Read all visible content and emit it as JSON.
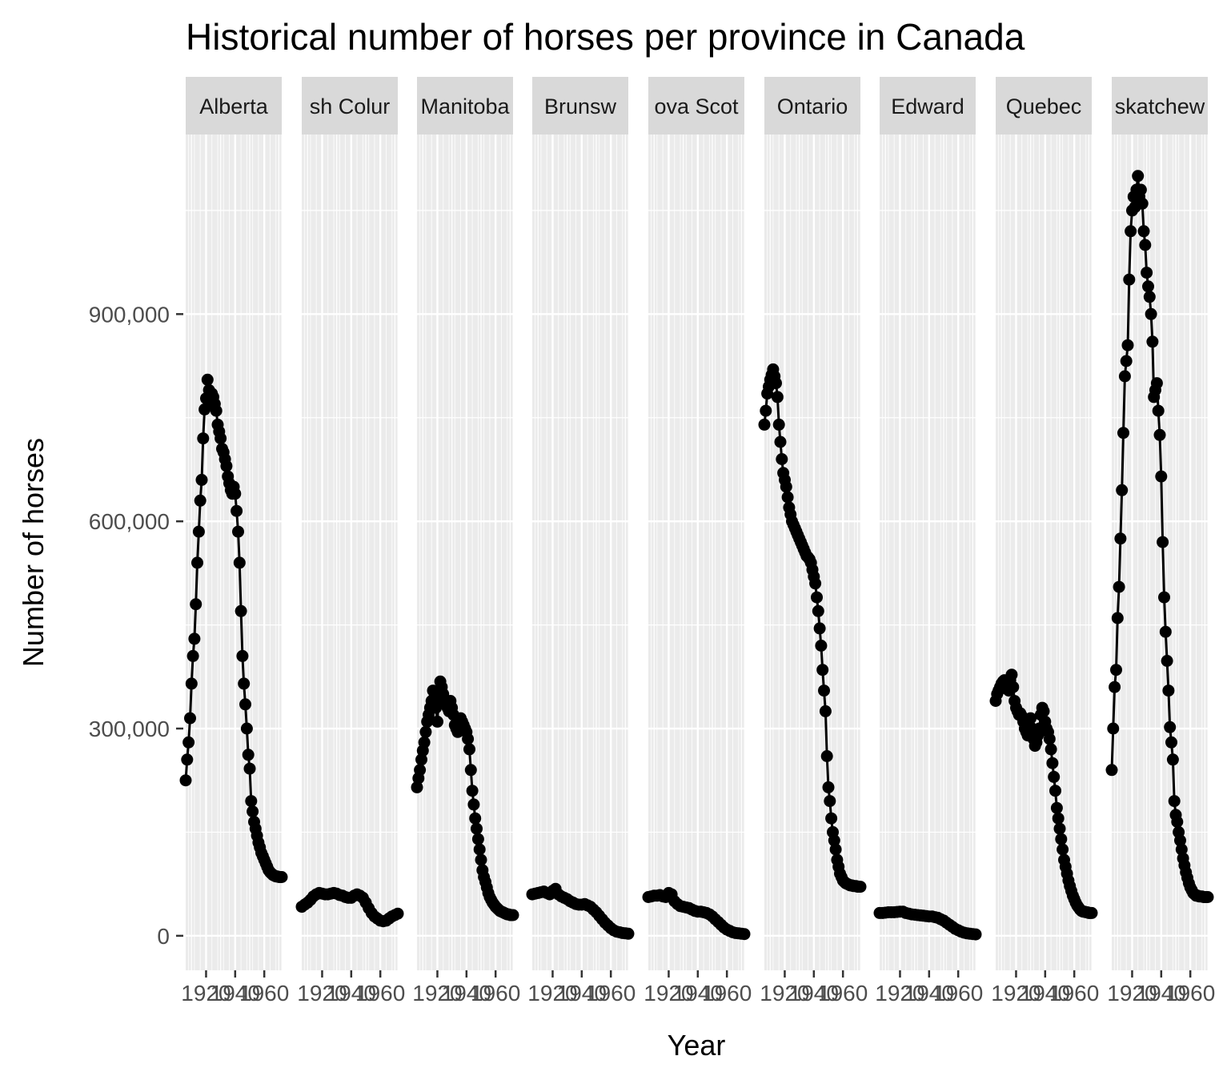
{
  "chart_data": {
    "type": "line",
    "title": "Historical number of horses per province in Canada",
    "xlabel": "Year",
    "ylabel": "Number of horses",
    "facet_by": "province",
    "xlim": [
      1906,
      1972
    ],
    "ylim": [
      -50000,
      1160000
    ],
    "x_ticks": [
      1920,
      1940,
      1960
    ],
    "x_tick_labels": [
      "1920",
      "1940",
      "1960"
    ],
    "y_ticks": [
      0,
      300000,
      600000,
      900000
    ],
    "y_tick_labels": [
      "0",
      "300,000",
      "600,000",
      "900,000"
    ],
    "panel_background": "#ebebeb",
    "strip_background": "#d9d9d9",
    "line_color": "#000000",
    "grid": true,
    "legend": "none",
    "series": [
      {
        "name": "Alberta",
        "x": [
          1906,
          1907,
          1908,
          1909,
          1910,
          1911,
          1912,
          1913,
          1914,
          1915,
          1916,
          1917,
          1918,
          1919,
          1920,
          1921,
          1922,
          1923,
          1924,
          1925,
          1926,
          1927,
          1928,
          1929,
          1930,
          1931,
          1932,
          1933,
          1934,
          1935,
          1936,
          1937,
          1938,
          1939,
          1940,
          1941,
          1942,
          1943,
          1944,
          1945,
          1946,
          1947,
          1948,
          1949,
          1950,
          1951,
          1952,
          1953,
          1954,
          1955,
          1956,
          1957,
          1958,
          1959,
          1960,
          1961,
          1962,
          1963,
          1964,
          1965,
          1966,
          1967,
          1968,
          1969,
          1970,
          1971,
          1972
        ],
        "values": [
          225000,
          255000,
          280000,
          315000,
          365000,
          405000,
          430000,
          480000,
          540000,
          585000,
          630000,
          660000,
          720000,
          762000,
          778000,
          805000,
          790000,
          770000,
          785000,
          780000,
          770000,
          760000,
          740000,
          730000,
          720000,
          705000,
          700000,
          690000,
          680000,
          665000,
          655000,
          645000,
          640000,
          650000,
          640000,
          615000,
          585000,
          540000,
          470000,
          405000,
          365000,
          335000,
          300000,
          262000,
          242000,
          195000,
          180000,
          165000,
          155000,
          145000,
          135000,
          128000,
          120000,
          115000,
          110000,
          105000,
          100000,
          95000,
          92000,
          90000,
          88000,
          87000,
          86000,
          86000,
          85000,
          85000,
          85000
        ]
      },
      {
        "name": "British Columbia",
        "x": [
          1906,
          1908,
          1910,
          1912,
          1914,
          1916,
          1918,
          1920,
          1922,
          1924,
          1926,
          1928,
          1930,
          1932,
          1934,
          1936,
          1938,
          1940,
          1942,
          1944,
          1946,
          1948,
          1950,
          1952,
          1954,
          1956,
          1958,
          1960,
          1962,
          1964,
          1966,
          1968,
          1970,
          1972
        ],
        "values": [
          42000,
          45000,
          48000,
          52000,
          57000,
          60000,
          62000,
          61000,
          60000,
          60000,
          61000,
          62000,
          61000,
          59000,
          58000,
          56000,
          55000,
          55000,
          58000,
          60000,
          58000,
          55000,
          48000,
          40000,
          33000,
          28000,
          25000,
          22000,
          21000,
          22000,
          25000,
          28000,
          30000,
          32000
        ]
      },
      {
        "name": "Manitoba",
        "x": [
          1906,
          1907,
          1908,
          1909,
          1910,
          1911,
          1912,
          1913,
          1914,
          1915,
          1916,
          1917,
          1918,
          1919,
          1920,
          1921,
          1922,
          1923,
          1924,
          1925,
          1926,
          1927,
          1928,
          1929,
          1930,
          1931,
          1932,
          1933,
          1934,
          1935,
          1936,
          1937,
          1938,
          1939,
          1940,
          1941,
          1942,
          1943,
          1944,
          1945,
          1946,
          1947,
          1948,
          1949,
          1950,
          1951,
          1952,
          1953,
          1954,
          1955,
          1956,
          1957,
          1958,
          1959,
          1960,
          1961,
          1962,
          1963,
          1964,
          1965,
          1966,
          1967,
          1968,
          1969,
          1970,
          1971,
          1972
        ],
        "values": [
          215000,
          228000,
          240000,
          255000,
          268000,
          280000,
          295000,
          310000,
          320000,
          330000,
          340000,
          355000,
          345000,
          330000,
          310000,
          350000,
          368000,
          360000,
          350000,
          340000,
          335000,
          330000,
          325000,
          340000,
          330000,
          320000,
          305000,
          300000,
          295000,
          305000,
          315000,
          310000,
          305000,
          300000,
          295000,
          285000,
          270000,
          240000,
          210000,
          190000,
          170000,
          155000,
          140000,
          125000,
          110000,
          95000,
          85000,
          78000,
          70000,
          62000,
          56000,
          52000,
          48000,
          45000,
          42000,
          40000,
          38000,
          36000,
          35000,
          34000,
          33000,
          32000,
          31000,
          31000,
          30000,
          30000,
          30000
        ]
      },
      {
        "name": "New Brunswick",
        "x": [
          1906,
          1908,
          1910,
          1912,
          1914,
          1916,
          1918,
          1920,
          1922,
          1924,
          1926,
          1928,
          1930,
          1932,
          1934,
          1936,
          1938,
          1940,
          1942,
          1944,
          1946,
          1948,
          1950,
          1952,
          1954,
          1956,
          1958,
          1960,
          1962,
          1964,
          1966,
          1968,
          1970,
          1972
        ],
        "values": [
          60000,
          61000,
          62000,
          63000,
          64000,
          62000,
          60000,
          65000,
          68000,
          60000,
          57000,
          55000,
          53000,
          50000,
          48000,
          46000,
          45000,
          45000,
          46000,
          44000,
          42000,
          38000,
          34000,
          29000,
          24000,
          19000,
          15000,
          11000,
          8000,
          6000,
          5000,
          4000,
          3500,
          3000
        ]
      },
      {
        "name": "Nova Scotia",
        "x": [
          1906,
          1908,
          1910,
          1912,
          1914,
          1916,
          1918,
          1920,
          1922,
          1924,
          1926,
          1928,
          1930,
          1932,
          1934,
          1936,
          1938,
          1940,
          1942,
          1944,
          1946,
          1948,
          1950,
          1952,
          1954,
          1956,
          1958,
          1960,
          1962,
          1964,
          1966,
          1968,
          1970,
          1972
        ],
        "values": [
          56000,
          57000,
          58000,
          58000,
          59000,
          57000,
          56000,
          62000,
          60000,
          50000,
          46000,
          43000,
          42000,
          41000,
          40000,
          38000,
          36000,
          35000,
          35000,
          34000,
          33000,
          31000,
          28000,
          24000,
          20000,
          16000,
          12000,
          9000,
          7000,
          5000,
          4000,
          3500,
          3000,
          2500
        ]
      },
      {
        "name": "Ontario",
        "x": [
          1906,
          1907,
          1908,
          1909,
          1910,
          1911,
          1912,
          1913,
          1914,
          1915,
          1916,
          1917,
          1918,
          1919,
          1920,
          1921,
          1922,
          1923,
          1924,
          1925,
          1926,
          1927,
          1928,
          1929,
          1930,
          1931,
          1932,
          1933,
          1934,
          1935,
          1936,
          1937,
          1938,
          1939,
          1940,
          1941,
          1942,
          1943,
          1944,
          1945,
          1946,
          1947,
          1948,
          1949,
          1950,
          1951,
          1952,
          1953,
          1954,
          1955,
          1956,
          1957,
          1958,
          1959,
          1960,
          1961,
          1962,
          1963,
          1964,
          1965,
          1966,
          1967,
          1968,
          1969,
          1970,
          1971,
          1972
        ],
        "values": [
          740000,
          760000,
          785000,
          795000,
          805000,
          812000,
          820000,
          810000,
          800000,
          780000,
          740000,
          715000,
          690000,
          670000,
          660000,
          650000,
          635000,
          620000,
          610000,
          600000,
          595000,
          590000,
          585000,
          580000,
          575000,
          570000,
          565000,
          560000,
          555000,
          550000,
          548000,
          545000,
          540000,
          530000,
          520000,
          510000,
          490000,
          470000,
          445000,
          420000,
          385000,
          355000,
          325000,
          260000,
          215000,
          195000,
          170000,
          150000,
          138000,
          125000,
          110000,
          100000,
          90000,
          85000,
          80000,
          78000,
          76000,
          75000,
          74000,
          73000,
          73000,
          72000,
          72000,
          72000,
          71000,
          71000,
          71000
        ]
      },
      {
        "name": "Prince Edward Island",
        "x": [
          1906,
          1908,
          1910,
          1912,
          1914,
          1916,
          1918,
          1920,
          1922,
          1924,
          1926,
          1928,
          1930,
          1932,
          1934,
          1936,
          1938,
          1940,
          1942,
          1944,
          1946,
          1948,
          1950,
          1952,
          1954,
          1956,
          1958,
          1960,
          1962,
          1964,
          1966,
          1968,
          1970,
          1972
        ],
        "values": [
          33000,
          33000,
          33500,
          34000,
          34000,
          34000,
          34500,
          35000,
          35000,
          33000,
          32000,
          31000,
          30500,
          30000,
          29500,
          29000,
          28500,
          28000,
          28000,
          27000,
          26000,
          24000,
          22000,
          19000,
          16000,
          13000,
          10000,
          8000,
          6000,
          4500,
          3500,
          3000,
          2500,
          2000
        ]
      },
      {
        "name": "Quebec",
        "x": [
          1906,
          1907,
          1908,
          1909,
          1910,
          1911,
          1912,
          1913,
          1914,
          1915,
          1916,
          1917,
          1918,
          1919,
          1920,
          1921,
          1922,
          1923,
          1924,
          1925,
          1926,
          1927,
          1928,
          1929,
          1930,
          1931,
          1932,
          1933,
          1934,
          1935,
          1936,
          1937,
          1938,
          1939,
          1940,
          1941,
          1942,
          1943,
          1944,
          1945,
          1946,
          1947,
          1948,
          1949,
          1950,
          1951,
          1952,
          1953,
          1954,
          1955,
          1956,
          1957,
          1958,
          1959,
          1960,
          1961,
          1962,
          1963,
          1964,
          1965,
          1966,
          1967,
          1968,
          1969,
          1970,
          1971,
          1972
        ],
        "values": [
          340000,
          350000,
          355000,
          360000,
          365000,
          368000,
          370000,
          365000,
          360000,
          355000,
          370000,
          378000,
          360000,
          340000,
          330000,
          325000,
          320000,
          322000,
          318000,
          310000,
          300000,
          295000,
          290000,
          305000,
          315000,
          300000,
          285000,
          275000,
          280000,
          290000,
          300000,
          320000,
          330000,
          325000,
          310000,
          300000,
          295000,
          285000,
          270000,
          250000,
          230000,
          210000,
          185000,
          170000,
          155000,
          140000,
          125000,
          110000,
          100000,
          90000,
          80000,
          72000,
          65000,
          58000,
          53000,
          48000,
          44000,
          41000,
          38000,
          36000,
          35000,
          35000,
          34000,
          34000,
          33000,
          33000,
          33000
        ]
      },
      {
        "name": "Saskatchewan",
        "x": [
          1906,
          1907,
          1908,
          1909,
          1910,
          1911,
          1912,
          1913,
          1914,
          1915,
          1916,
          1917,
          1918,
          1919,
          1920,
          1921,
          1922,
          1923,
          1924,
          1925,
          1926,
          1927,
          1928,
          1929,
          1930,
          1931,
          1932,
          1933,
          1934,
          1935,
          1936,
          1937,
          1938,
          1939,
          1940,
          1941,
          1942,
          1943,
          1944,
          1945,
          1946,
          1947,
          1948,
          1949,
          1950,
          1951,
          1952,
          1953,
          1954,
          1955,
          1956,
          1957,
          1958,
          1959,
          1960,
          1961,
          1962,
          1963,
          1964,
          1965,
          1966,
          1967,
          1968,
          1969,
          1970,
          1971,
          1972
        ],
        "values": [
          240000,
          300000,
          360000,
          385000,
          460000,
          505000,
          575000,
          645000,
          728000,
          810000,
          832000,
          855000,
          950000,
          1020000,
          1050000,
          1070000,
          1055000,
          1080000,
          1100000,
          1070000,
          1080000,
          1060000,
          1020000,
          1000000,
          960000,
          940000,
          925000,
          900000,
          860000,
          780000,
          790000,
          800000,
          760000,
          725000,
          665000,
          570000,
          490000,
          440000,
          398000,
          355000,
          302000,
          280000,
          255000,
          195000,
          175000,
          165000,
          150000,
          138000,
          125000,
          112000,
          102000,
          92000,
          84000,
          76000,
          70000,
          66000,
          62000,
          60000,
          58000,
          58000,
          57000,
          57000,
          57000,
          56000,
          56000,
          56000,
          56000
        ]
      }
    ],
    "strip_labels": [
      "Alberta",
      "sh Colur",
      "Manitoba",
      "Brunsw",
      "ova Scot",
      "Ontario",
      "Edward",
      "Quebec",
      "skatchew"
    ],
    "x_tick_text_per_panel": [
      "1920",
      "1940",
      "1960"
    ]
  }
}
